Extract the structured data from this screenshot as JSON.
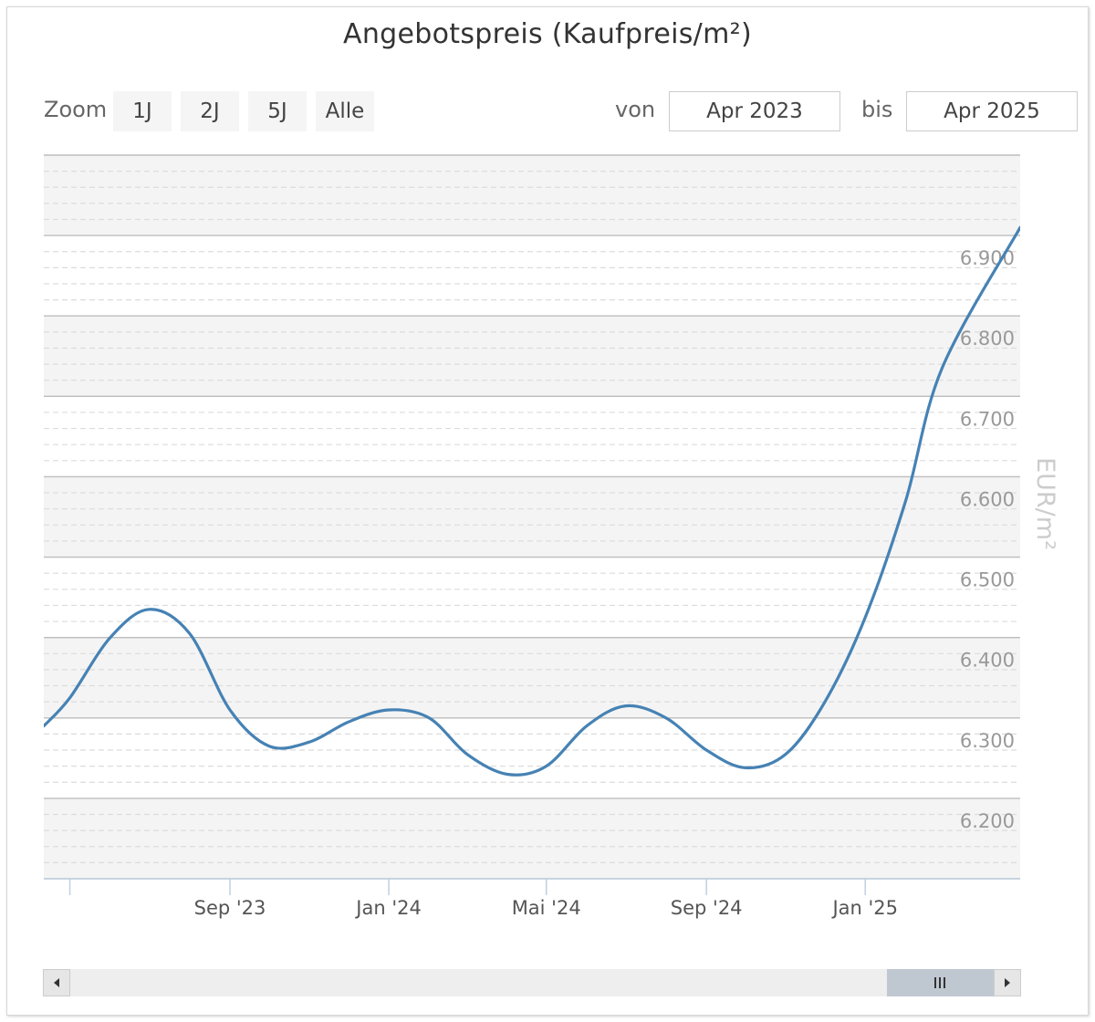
{
  "title": "Angebotspreis (Kaufpreis/m²)",
  "rangeSelector": {
    "zoom_label": "Zoom",
    "buttons": [
      "1J",
      "2J",
      "5J",
      "Alle"
    ],
    "from_label": "von",
    "from_value": "Apr 2023",
    "to_label": "bis",
    "to_value": "Apr 2025"
  },
  "colors": {
    "line": "#4682b4",
    "band": "#f4f4f4",
    "major_grid": "#bdbdbd",
    "minor_grid": "#dcdcdc"
  },
  "scrollbar": {
    "left_icon": "arrow-left-icon",
    "right_icon": "arrow-right-icon",
    "grip_icon": "grip-icon"
  },
  "chart_data": {
    "type": "line",
    "title": "Angebotspreis (Kaufpreis/m²)",
    "ylabel": "EUR/m²",
    "xlabel": "",
    "y_axis_side": "right",
    "ylim": [
      6100,
      7000
    ],
    "y_major_step": 100,
    "y_minor_step": 20,
    "y_tick_labels": [
      "6.200",
      "6.300",
      "6.400",
      "6.500",
      "6.600",
      "6.700",
      "6.800",
      "6.900"
    ],
    "y_ticks": [
      6200,
      6300,
      6400,
      6500,
      6600,
      6700,
      6800,
      6900
    ],
    "xlim": [
      "2023-04-11",
      "2025-04-30"
    ],
    "x_tick_labels": [
      "",
      "Sep '23",
      "Jan '24",
      "Mai '24",
      "Sep '24",
      "Jan '25"
    ],
    "x_ticks": [
      "2023-05-01",
      "2023-09-01",
      "2024-01-01",
      "2024-05-01",
      "2024-09-01",
      "2025-01-01"
    ],
    "grid": true,
    "alternate_bands": true,
    "legend": "none",
    "smooth": true,
    "series": [
      {
        "values": [
          {
            "x": "2023-04-11",
            "y": 6290
          },
          {
            "x": "2023-05-01",
            "y": 6325
          },
          {
            "x": "2023-06-01",
            "y": 6400
          },
          {
            "x": "2023-07-01",
            "y": 6435
          },
          {
            "x": "2023-08-01",
            "y": 6405
          },
          {
            "x": "2023-09-01",
            "y": 6310
          },
          {
            "x": "2023-10-01",
            "y": 6265
          },
          {
            "x": "2023-11-01",
            "y": 6270
          },
          {
            "x": "2023-12-01",
            "y": 6295
          },
          {
            "x": "2024-01-01",
            "y": 6310
          },
          {
            "x": "2024-02-01",
            "y": 6300
          },
          {
            "x": "2024-03-01",
            "y": 6255
          },
          {
            "x": "2024-04-01",
            "y": 6230
          },
          {
            "x": "2024-05-01",
            "y": 6240
          },
          {
            "x": "2024-06-01",
            "y": 6290
          },
          {
            "x": "2024-07-01",
            "y": 6315
          },
          {
            "x": "2024-08-01",
            "y": 6300
          },
          {
            "x": "2024-09-01",
            "y": 6260
          },
          {
            "x": "2024-10-01",
            "y": 6238
          },
          {
            "x": "2024-11-01",
            "y": 6255
          },
          {
            "x": "2024-12-01",
            "y": 6320
          },
          {
            "x": "2025-01-01",
            "y": 6425
          },
          {
            "x": "2025-02-01",
            "y": 6570
          },
          {
            "x": "2025-03-01",
            "y": 6735
          },
          {
            "x": "2025-04-30",
            "y": 6910
          }
        ]
      }
    ]
  }
}
